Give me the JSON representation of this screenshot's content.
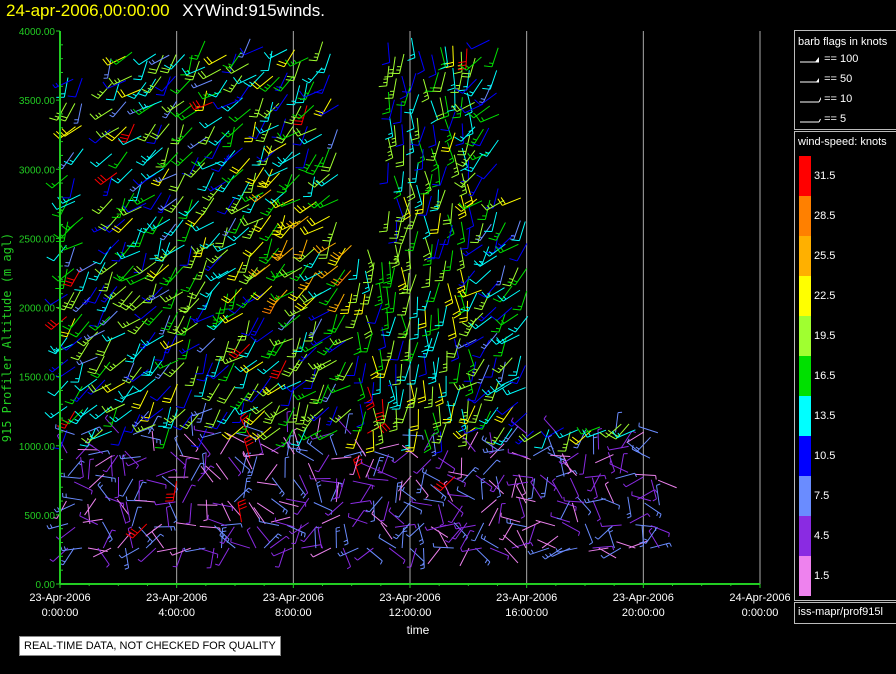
{
  "header": {
    "date": "24-apr-2006,00:00:00",
    "title": "XYWind:915winds."
  },
  "chart_data": {
    "type": "wind-barb profile (time-height)",
    "xlabel": "time",
    "ylabel": "915 Profiler Altitude (m agl)",
    "x_ticks": [
      {
        "line1": "23-Apr-2006",
        "line2": "0:00:00",
        "hour": 0
      },
      {
        "line1": "23-Apr-2006",
        "line2": "4:00:00",
        "hour": 4
      },
      {
        "line1": "23-Apr-2006",
        "line2": "8:00:00",
        "hour": 8
      },
      {
        "line1": "23-Apr-2006",
        "line2": "12:00:00",
        "hour": 12
      },
      {
        "line1": "23-Apr-2006",
        "line2": "16:00:00",
        "hour": 16
      },
      {
        "line1": "23-Apr-2006",
        "line2": "20:00:00",
        "hour": 20
      },
      {
        "line1": "24-Apr-2006",
        "line2": "0:00:00",
        "hour": 24
      }
    ],
    "y_ticks": [
      "0.00",
      "500.00",
      "1000.00",
      "1500.00",
      "2000.00",
      "2500.00",
      "3000.00",
      "3500.00",
      "4000.00"
    ],
    "ylim": [
      0,
      4000
    ],
    "xlim_hours": [
      0,
      24
    ],
    "grid": "vertical lines at x ticks",
    "colors": {
      "axis": "#22cc22",
      "grid": "#aaaaaa",
      "title_date": "#ffff00"
    }
  },
  "legend": {
    "barb_title": "barb flags in knots",
    "barb_entries": [
      "== 100",
      "== 50",
      "== 10",
      "== 5"
    ],
    "speed_title": "wind-speed: knots",
    "speed_levels": [
      {
        "label": "31.5",
        "color": "#ff0000"
      },
      {
        "label": "28.5",
        "color": "#ff8000"
      },
      {
        "label": "25.5",
        "color": "#ffb000"
      },
      {
        "label": "22.5",
        "color": "#ffff00"
      },
      {
        "label": "19.5",
        "color": "#a0ff30"
      },
      {
        "label": "16.5",
        "color": "#00e000"
      },
      {
        "label": "13.5",
        "color": "#00ffff"
      },
      {
        "label": "10.5",
        "color": "#0000ff"
      },
      {
        "label": "7.5",
        "color": "#6a8cff"
      },
      {
        "label": "4.5",
        "color": "#8a2be2"
      },
      {
        "label": "1.5",
        "color": "#ee82ee"
      }
    ],
    "source": "iss-mapr/prof915l"
  },
  "footer": {
    "qc_notice": "REAL-TIME DATA, NOT CHECKED FOR QUALITY"
  }
}
